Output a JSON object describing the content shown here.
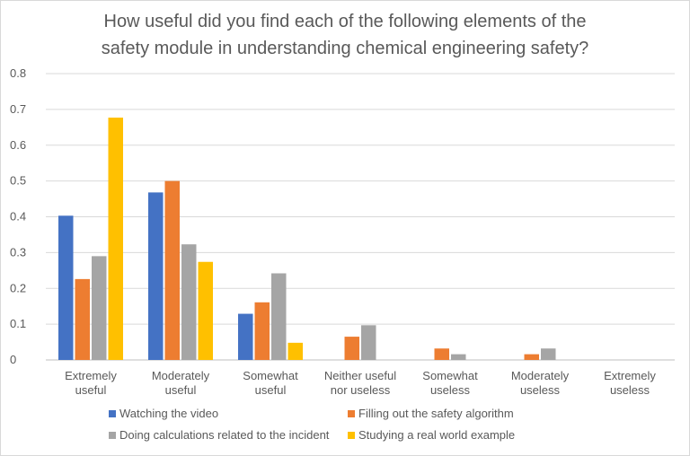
{
  "chart_data": {
    "type": "bar",
    "title": "How useful did you find each of the following elements of the safety module in understanding chemical engineering safety?",
    "title_lines": [
      "How useful did you find each of the following elements of the",
      "safety module in understanding chemical engineering safety?"
    ],
    "categories": [
      [
        "Extremely",
        "useful"
      ],
      [
        "Moderately",
        "useful"
      ],
      [
        "Somewhat",
        "useful"
      ],
      [
        "Neither useful",
        "nor useless"
      ],
      [
        "Somewhat",
        "useless"
      ],
      [
        "Moderately",
        "useless"
      ],
      [
        "Extremely",
        "useless"
      ]
    ],
    "series": [
      {
        "name": "Watching the video",
        "color": "#4472C4",
        "values": [
          0.403,
          0.468,
          0.129,
          0,
          0,
          0,
          0
        ]
      },
      {
        "name": "Filling out the safety algorithm",
        "color": "#ED7D31",
        "values": [
          0.226,
          0.5,
          0.161,
          0.065,
          0.032,
          0.016,
          0
        ]
      },
      {
        "name": "Doing calculations related to the incident",
        "color": "#A5A5A5",
        "values": [
          0.29,
          0.323,
          0.242,
          0.097,
          0.016,
          0.032,
          0
        ]
      },
      {
        "name": "Studying a real world example",
        "color": "#FFC000",
        "values": [
          0.677,
          0.274,
          0.048,
          0,
          0,
          0,
          0
        ]
      }
    ],
    "y_ticks": [
      "0",
      "0.1",
      "0.2",
      "0.3",
      "0.4",
      "0.5",
      "0.6",
      "0.7",
      "0.8"
    ],
    "ylim": [
      0,
      0.8
    ],
    "grid": true,
    "legend_position": "bottom"
  }
}
